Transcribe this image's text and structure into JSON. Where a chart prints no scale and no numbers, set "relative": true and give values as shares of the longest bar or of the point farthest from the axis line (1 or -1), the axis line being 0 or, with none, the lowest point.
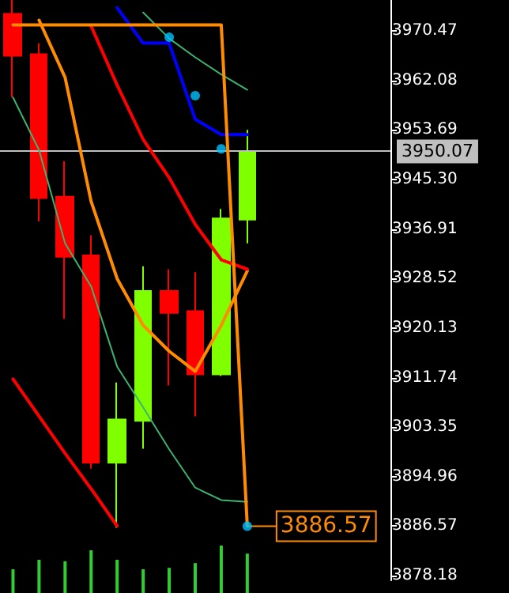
{
  "chart_data": [
    {
      "type": "candlestick",
      "categories": [
        null,
        null,
        null,
        null,
        null,
        null,
        null,
        null,
        null,
        null,
        null,
        null,
        null,
        null,
        null
      ],
      "ohlc": [
        [
          3973.35,
          3975.7,
          3959.2,
          3966.27
        ],
        [
          3966.53,
          3968.37,
          3938.2,
          3942.15
        ],
        [
          3942.4,
          3948.4,
          3921.7,
          3932.2
        ],
        [
          3932.45,
          3935.86,
          3896.3,
          3897.3
        ],
        [
          3897.3,
          3910.9,
          3886.3,
          3904.65
        ],
        [
          3904.4,
          3930.6,
          3899.7,
          3926.4
        ],
        [
          3926.4,
          3930.1,
          3910.4,
          3922.7
        ],
        [
          3923.0,
          3929.6,
          3905.2,
          3912.3
        ],
        [
          3912.3,
          3940.3,
          3912.0,
          3938.7
        ],
        [
          3938.5,
          3953.7,
          3934.5,
          3950.07
        ],
        null,
        null,
        null,
        null,
        null
      ],
      "colors": [
        "#ff0000",
        "#ff0000",
        "#ff0000",
        "#ff0000",
        "#7fff00",
        "#7fff00",
        "#ff0000",
        "#ff0000",
        "#7fff00",
        "#7fff00",
        null,
        null,
        null,
        null,
        null
      ],
      "series": [
        {
          "type": "line",
          "color": "#ff8c00",
          "marker": "none",
          "values": [
            null,
            3972.3,
            3962.6,
            3941.6,
            3928.5,
            3920.6,
            3916.2,
            3912.8,
            3920.6,
            3929.8,
            null,
            null,
            null,
            null,
            null
          ]
        },
        {
          "type": "line",
          "color": "#ff0000",
          "marker": "none",
          "values": [
            null,
            null,
            null,
            3971.3,
            3961.3,
            3952.1,
            3945.6,
            3937.7,
            3931.7,
            3930.1,
            null,
            null,
            null,
            null,
            null
          ]
        },
        {
          "type": "line",
          "color": "#0000ff",
          "marker": "none",
          "values": [
            null,
            null,
            null,
            null,
            3974.4,
            3968.4,
            3968.4,
            3955.5,
            3952.9,
            3952.9,
            null,
            null,
            null,
            null,
            null
          ]
        },
        {
          "type": "line",
          "color": "#3cb371",
          "marker": "none",
          "values": [
            3959.2,
            3950.3,
            3934.5,
            3927.2,
            3913.6,
            3906.7,
            3899.6,
            3893.1,
            3891.0,
            3890.7,
            null,
            null,
            null,
            null,
            null
          ]
        },
        {
          "type": "line",
          "color": "#3cb371",
          "marker": "none",
          "values": [
            null,
            null,
            null,
            null,
            null,
            3973.6,
            3969.2,
            3966.0,
            3963.1,
            3960.5,
            null,
            null,
            null,
            null,
            null
          ]
        },
        {
          "type": "line",
          "color": "#ff0000",
          "marker": "none",
          "values": [
            3911.5,
            3905.2,
            3898.9,
            3892.9,
            3886.6,
            null,
            null,
            null,
            null,
            null,
            null,
            null,
            null,
            null,
            null
          ]
        },
        {
          "type": "line",
          "color": "#ff8c00",
          "marker": "none",
          "values": [
            3971.5,
            3971.5,
            3971.5,
            3971.5,
            3971.5,
            3971.5,
            3971.5,
            3971.5,
            3971.5,
            3886.57,
            null,
            null,
            null,
            null,
            null
          ]
        },
        {
          "type": "scatter",
          "color": "#00bfff",
          "marker": "circle",
          "values": [
            null,
            null,
            null,
            null,
            null,
            null,
            3969.4,
            3959.5,
            3950.5,
            3886.57,
            null,
            null,
            null,
            null,
            null
          ]
        }
      ],
      "ylim": [
        3877.39,
        3975.71
      ],
      "yticks": [
        3970.47,
        3962.08,
        3953.69,
        {
          "value": 3945.3,
          "label": "3945.30"
        },
        3936.91,
        3928.52,
        3920.13,
        3911.74,
        3903.35,
        3894.96,
        3886.57,
        3878.18
      ],
      "ref_lines": [
        {
          "axis": "y",
          "value": 3950.07,
          "label": "3950.07",
          "color": "#c0c0c0"
        }
      ],
      "annotations": [
        "3886.57"
      ],
      "grid": false
    },
    {
      "type": "bar",
      "relative": true,
      "color": "#32cd32",
      "categories": [
        null,
        null,
        null,
        null,
        null,
        null,
        null,
        null,
        null,
        null,
        null,
        null,
        null,
        null,
        null
      ],
      "values": [
        0.5,
        0.7,
        0.67,
        0.9,
        0.7,
        0.5,
        0.53,
        0.63,
        1,
        0.83,
        null,
        null,
        null,
        null,
        null
      ]
    }
  ]
}
